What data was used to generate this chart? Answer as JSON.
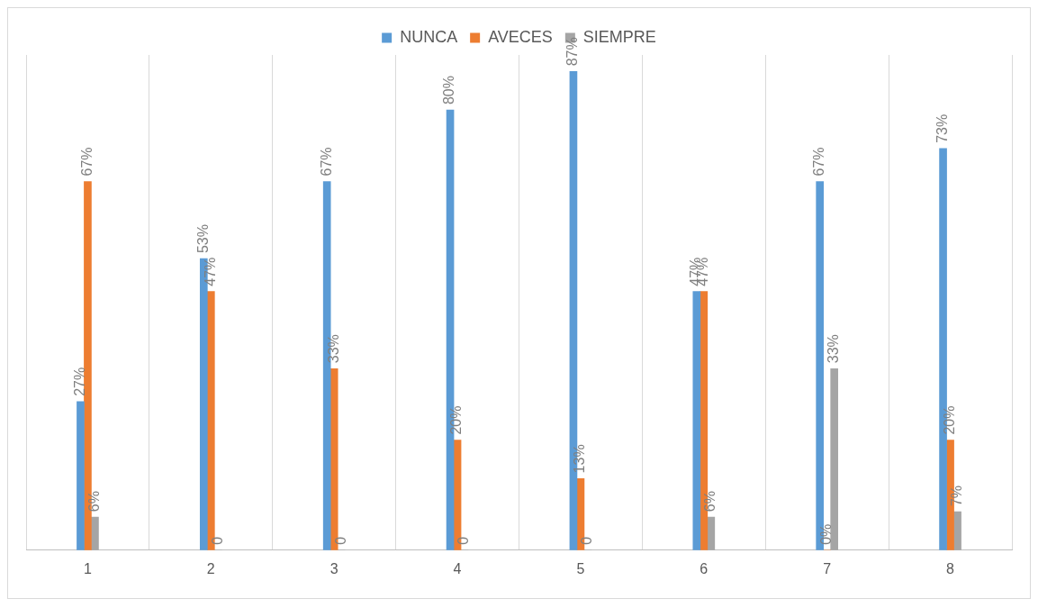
{
  "chart_data": {
    "type": "bar",
    "categories": [
      "1",
      "2",
      "3",
      "4",
      "5",
      "6",
      "7",
      "8"
    ],
    "series": [
      {
        "name": "NUNCA",
        "color": "#5b9bd5",
        "values": [
          27,
          53,
          67,
          80,
          87,
          47,
          67,
          73
        ],
        "value_labels": [
          "27%",
          "53%",
          "67%",
          "80%",
          "87%",
          "47%",
          "67%",
          "73%"
        ]
      },
      {
        "name": "AVECES",
        "color": "#ed7d31",
        "values": [
          67,
          47,
          33,
          20,
          13,
          47,
          0,
          20
        ],
        "value_labels": [
          "67%",
          "47%",
          "33%",
          "20%",
          "13%",
          "47%",
          "0%",
          "20%"
        ]
      },
      {
        "name": "SIEMPRE",
        "color": "#a5a5a5",
        "values": [
          6,
          0,
          0,
          0,
          0,
          6,
          33,
          7
        ],
        "value_labels": [
          "6%",
          "0",
          "0",
          "0",
          "0",
          "6%",
          "33%",
          "7%"
        ]
      }
    ],
    "grid": "x",
    "legend": "top",
    "tick_labels": "x"
  }
}
